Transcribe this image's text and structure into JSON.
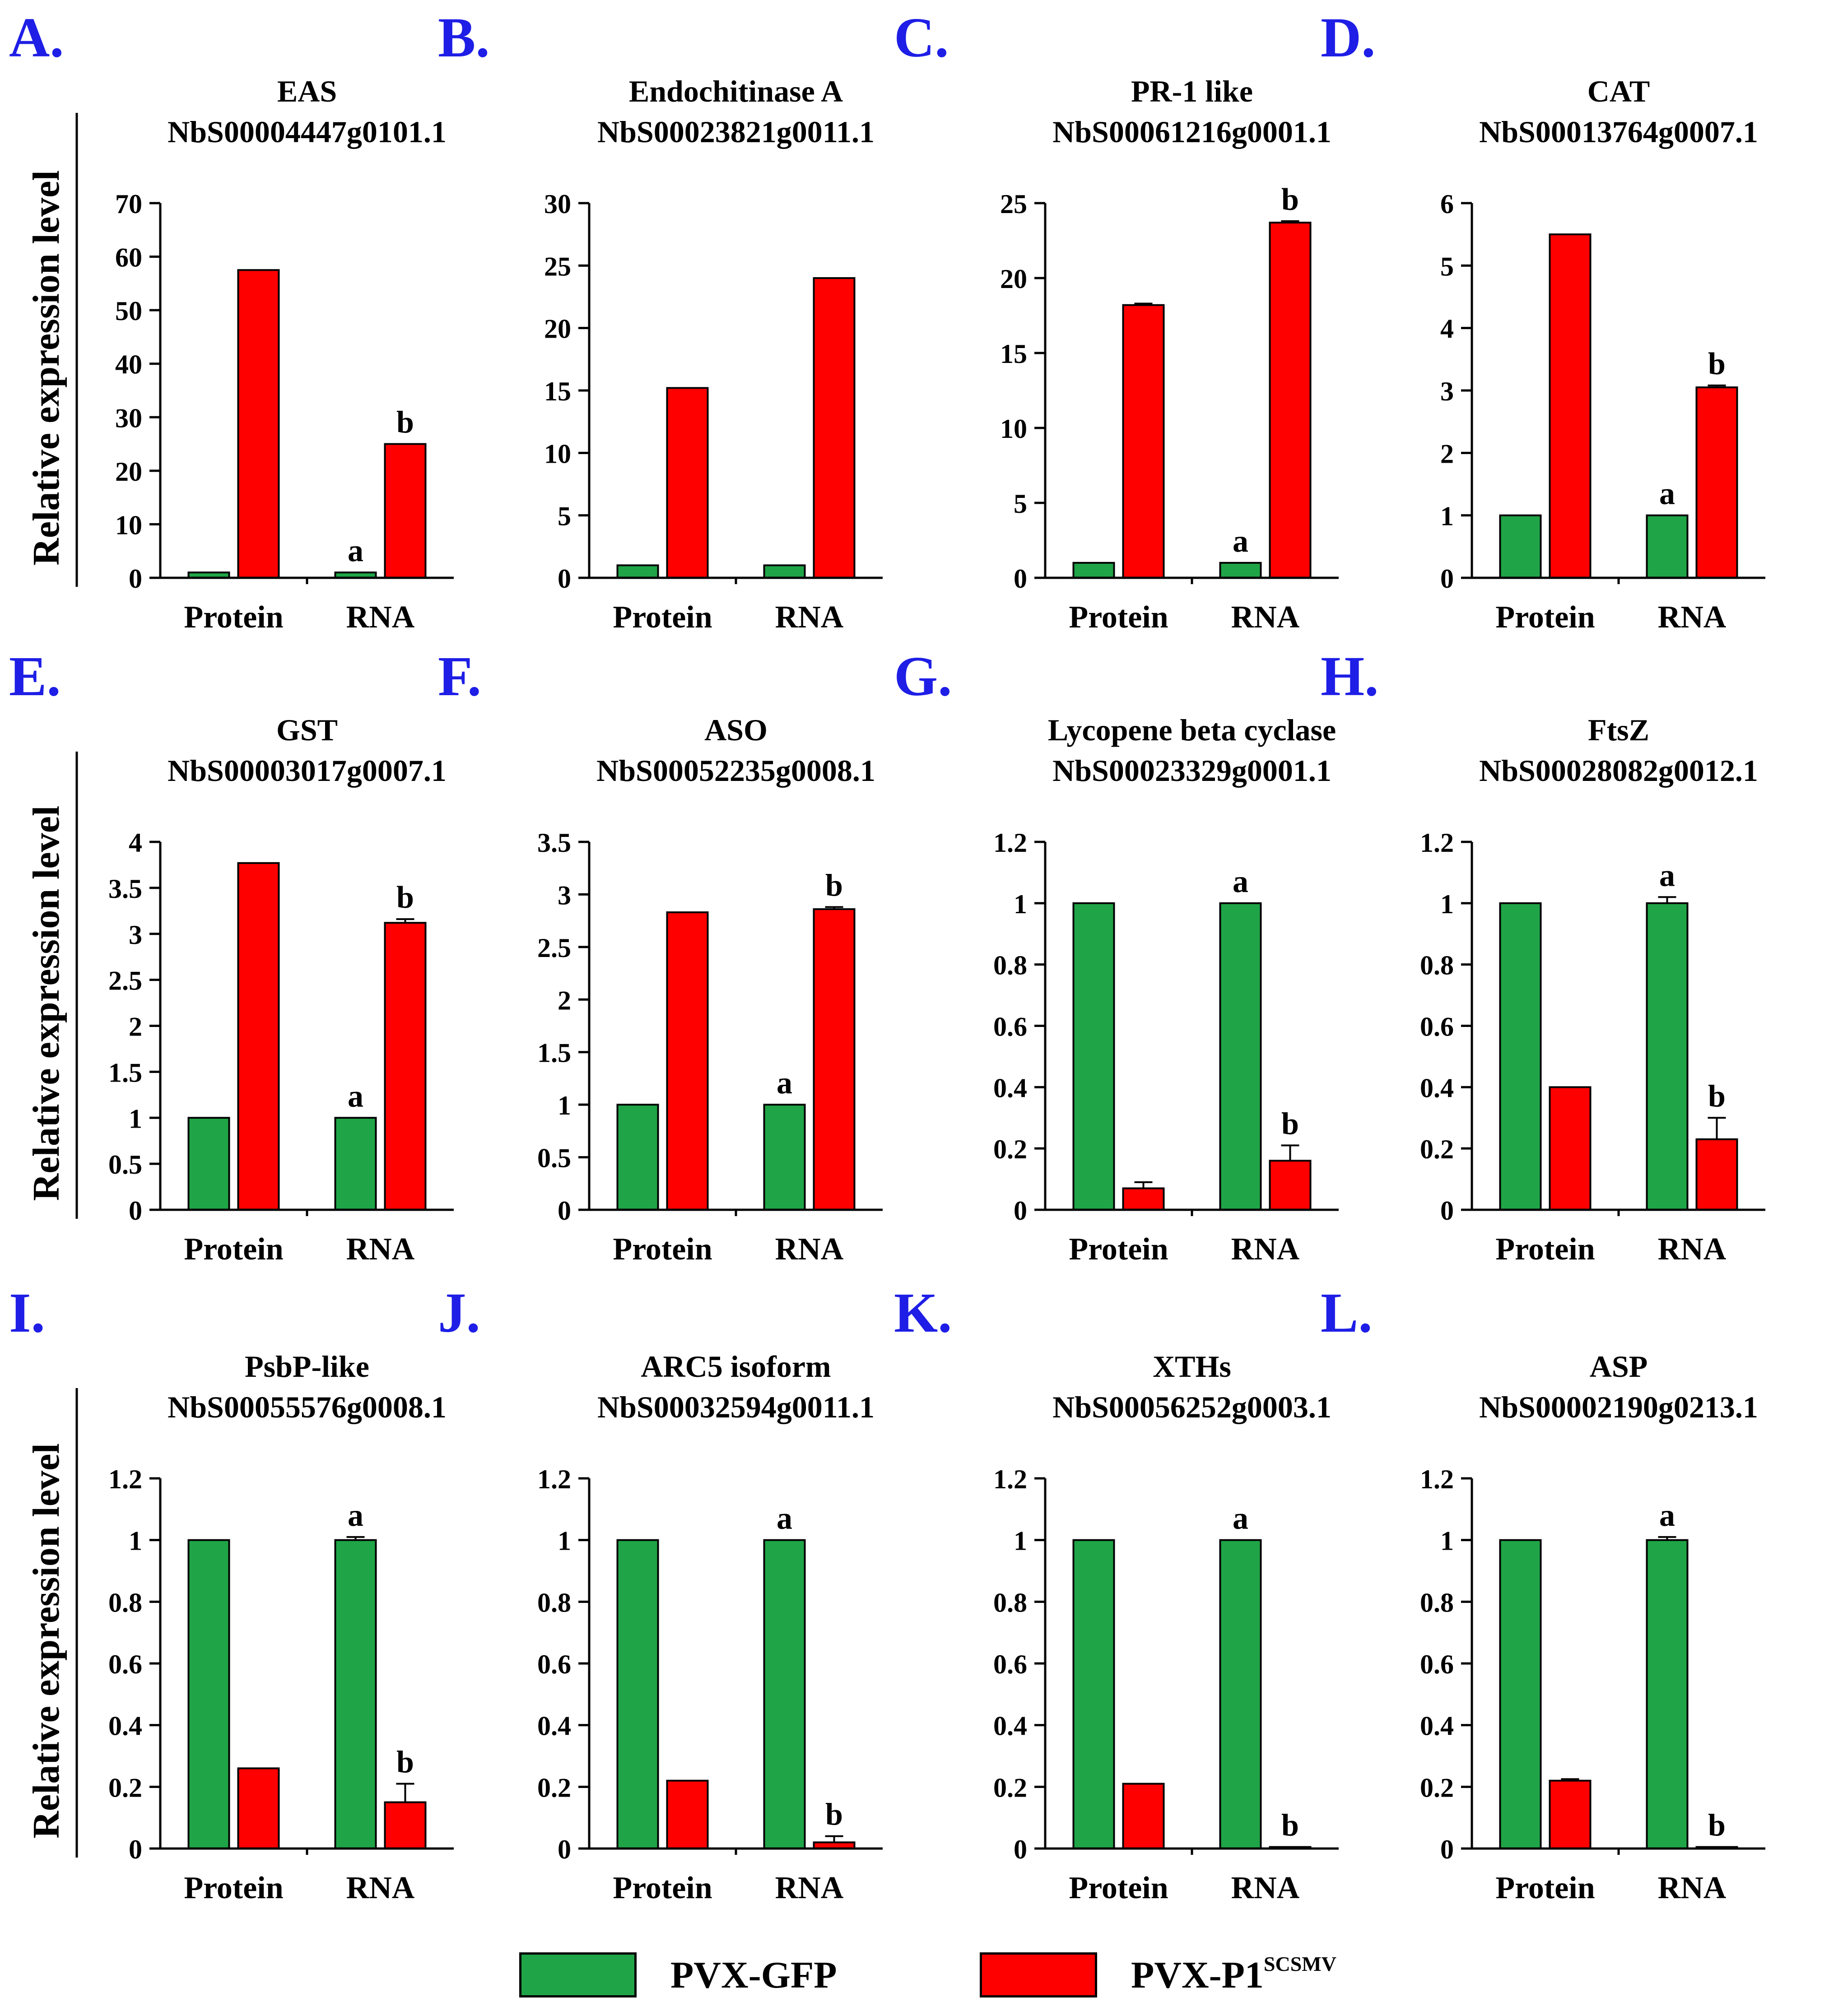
{
  "colors": {
    "green": "#1fa547",
    "red": "#ff0000",
    "panel_letter": "#1e1ee6",
    "text": "#000000"
  },
  "y_axis_label": "Relative expression level",
  "legend": [
    {
      "label": "PVX-GFP",
      "color": "#1fa547"
    },
    {
      "label": "PVX-P1",
      "superscript": "SCSMV",
      "color": "#ff0000"
    }
  ],
  "chart_data": [
    {
      "panel": "A.",
      "type": "bar",
      "title": "EAS",
      "subtitle": "NbS00004447g0101.1",
      "categories": [
        "Protein",
        "RNA"
      ],
      "ylim": [
        0,
        70
      ],
      "yticks": [
        "0",
        "10",
        "20",
        "30",
        "40",
        "50",
        "60",
        "70"
      ],
      "series": [
        {
          "name": "PVX-GFP",
          "values": [
            1,
            1
          ],
          "errors": [
            0,
            0
          ],
          "labels": [
            "",
            "a"
          ]
        },
        {
          "name": "PVX-P1SCSMV",
          "values": [
            57.5,
            25
          ],
          "errors": [
            0,
            0
          ],
          "labels": [
            "",
            "b"
          ]
        }
      ]
    },
    {
      "panel": "B.",
      "type": "bar",
      "title": "Endochitinase A",
      "subtitle": "NbS00023821g0011.1",
      "categories": [
        "Protein",
        "RNA"
      ],
      "ylim": [
        0,
        30
      ],
      "yticks": [
        "0",
        "5",
        "10",
        "15",
        "20",
        "25",
        "30"
      ],
      "series": [
        {
          "name": "PVX-GFP",
          "values": [
            1,
            1
          ],
          "errors": [
            0,
            0
          ],
          "labels": [
            "",
            ""
          ]
        },
        {
          "name": "PVX-P1SCSMV",
          "values": [
            15.2,
            24
          ],
          "errors": [
            0,
            0
          ],
          "labels": [
            "",
            ""
          ]
        }
      ]
    },
    {
      "panel": "C.",
      "type": "bar",
      "title": "PR-1 like",
      "subtitle": "NbS00061216g0001.1",
      "categories": [
        "Protein",
        "RNA"
      ],
      "ylim": [
        0,
        25
      ],
      "yticks": [
        "0",
        "5",
        "10",
        "15",
        "20",
        "25"
      ],
      "series": [
        {
          "name": "PVX-GFP",
          "values": [
            1,
            1
          ],
          "errors": [
            0,
            0
          ],
          "labels": [
            "",
            "a"
          ]
        },
        {
          "name": "PVX-P1SCSMV",
          "values": [
            18.2,
            23.7
          ],
          "errors": [
            0.1,
            0.1
          ],
          "labels": [
            "",
            "b"
          ]
        }
      ]
    },
    {
      "panel": "D.",
      "type": "bar",
      "title": "CAT",
      "subtitle": "NbS00013764g0007.1",
      "categories": [
        "Protein",
        "RNA"
      ],
      "ylim": [
        0,
        6
      ],
      "yticks": [
        "0",
        "1",
        "2",
        "3",
        "4",
        "5",
        "6"
      ],
      "series": [
        {
          "name": "PVX-GFP",
          "values": [
            1,
            1
          ],
          "errors": [
            0,
            0
          ],
          "labels": [
            "",
            "a"
          ]
        },
        {
          "name": "PVX-P1SCSMV",
          "values": [
            5.5,
            3.05
          ],
          "errors": [
            0,
            0.03
          ],
          "labels": [
            "",
            "b"
          ]
        }
      ]
    },
    {
      "panel": "E.",
      "type": "bar",
      "title": "GST",
      "subtitle": "NbS00003017g0007.1",
      "categories": [
        "Protein",
        "RNA"
      ],
      "ylim": [
        0,
        4
      ],
      "yticks": [
        "0",
        "0.5",
        "1",
        "1.5",
        "2",
        "2.5",
        "3",
        "3.5",
        "4"
      ],
      "series": [
        {
          "name": "PVX-GFP",
          "values": [
            1,
            1
          ],
          "errors": [
            0,
            0
          ],
          "labels": [
            "",
            "a"
          ]
        },
        {
          "name": "PVX-P1SCSMV",
          "values": [
            3.77,
            3.12
          ],
          "errors": [
            0,
            0.04
          ],
          "labels": [
            "",
            "b"
          ]
        }
      ]
    },
    {
      "panel": "F.",
      "type": "bar",
      "title": "ASO",
      "subtitle": "NbS00052235g0008.1",
      "categories": [
        "Protein",
        "RNA"
      ],
      "ylim": [
        0,
        3.5
      ],
      "yticks": [
        "0",
        "0.5",
        "1",
        "1.5",
        "2",
        "2.5",
        "3",
        "3.5"
      ],
      "series": [
        {
          "name": "PVX-GFP",
          "values": [
            1,
            1
          ],
          "errors": [
            0,
            0
          ],
          "labels": [
            "",
            "a"
          ]
        },
        {
          "name": "PVX-P1SCSMV",
          "values": [
            2.83,
            2.86
          ],
          "errors": [
            0,
            0.02
          ],
          "labels": [
            "",
            "b"
          ]
        }
      ]
    },
    {
      "panel": "G.",
      "type": "bar",
      "title": "Lycopene beta cyclase",
      "subtitle": "NbS00023329g0001.1",
      "categories": [
        "Protein",
        "RNA"
      ],
      "ylim": [
        0,
        1.2
      ],
      "yticks": [
        "0",
        "0.2",
        "0.4",
        "0.6",
        "0.8",
        "1",
        "1.2"
      ],
      "series": [
        {
          "name": "PVX-GFP",
          "values": [
            1,
            1
          ],
          "errors": [
            0,
            0
          ],
          "labels": [
            "",
            "a"
          ]
        },
        {
          "name": "PVX-P1SCSMV",
          "values": [
            0.07,
            0.16
          ],
          "errors": [
            0.02,
            0.05
          ],
          "labels": [
            "",
            "b"
          ]
        }
      ]
    },
    {
      "panel": "H.",
      "type": "bar",
      "title": "FtsZ",
      "subtitle": "NbS00028082g0012.1",
      "categories": [
        "Protein",
        "RNA"
      ],
      "ylim": [
        0,
        1.2
      ],
      "yticks": [
        "0",
        "0.2",
        "0.4",
        "0.6",
        "0.8",
        "1",
        "1.2"
      ],
      "series": [
        {
          "name": "PVX-GFP",
          "values": [
            1,
            1
          ],
          "errors": [
            0,
            0.02
          ],
          "labels": [
            "",
            "a"
          ]
        },
        {
          "name": "PVX-P1SCSMV",
          "values": [
            0.4,
            0.23
          ],
          "errors": [
            0,
            0.07
          ],
          "labels": [
            "",
            "b"
          ]
        }
      ]
    },
    {
      "panel": "I.",
      "type": "bar",
      "title": "PsbP-like",
      "subtitle": "NbS00055576g0008.1",
      "categories": [
        "Protein",
        "RNA"
      ],
      "ylim": [
        0,
        1.2
      ],
      "yticks": [
        "0",
        "0.2",
        "0.4",
        "0.6",
        "0.8",
        "1",
        "1.2"
      ],
      "series": [
        {
          "name": "PVX-GFP",
          "values": [
            1,
            1
          ],
          "errors": [
            0,
            0.01
          ],
          "labels": [
            "",
            "a"
          ]
        },
        {
          "name": "PVX-P1SCSMV",
          "values": [
            0.26,
            0.15
          ],
          "errors": [
            0,
            0.06
          ],
          "labels": [
            "",
            "b"
          ]
        }
      ]
    },
    {
      "panel": "J.",
      "type": "bar",
      "title": "ARC5 isoform",
      "subtitle": "NbS00032594g0011.1",
      "categories": [
        "Protein",
        "RNA"
      ],
      "ylim": [
        0,
        1.2
      ],
      "yticks": [
        "0",
        "0.2",
        "0.4",
        "0.6",
        "0.8",
        "1",
        "1.2"
      ],
      "series": [
        {
          "name": "PVX-GFP",
          "values": [
            1,
            1
          ],
          "errors": [
            0,
            0
          ],
          "labels": [
            "",
            "a"
          ]
        },
        {
          "name": "PVX-P1SCSMV",
          "values": [
            0.22,
            0.02
          ],
          "errors": [
            0,
            0.02
          ],
          "labels": [
            "",
            "b"
          ]
        }
      ]
    },
    {
      "panel": "K.",
      "type": "bar",
      "title": "XTHs",
      "subtitle": "NbS00056252g0003.1",
      "categories": [
        "Protein",
        "RNA"
      ],
      "ylim": [
        0,
        1.2
      ],
      "yticks": [
        "0",
        "0.2",
        "0.4",
        "0.6",
        "0.8",
        "1",
        "1.2"
      ],
      "series": [
        {
          "name": "PVX-GFP",
          "values": [
            1,
            1
          ],
          "errors": [
            0,
            0
          ],
          "labels": [
            "",
            "a"
          ]
        },
        {
          "name": "PVX-P1SCSMV",
          "values": [
            0.21,
            0.005
          ],
          "errors": [
            0,
            0
          ],
          "labels": [
            "",
            "b"
          ]
        }
      ]
    },
    {
      "panel": "L.",
      "type": "bar",
      "title": "ASP",
      "subtitle": "NbS00002190g0213.1",
      "categories": [
        "Protein",
        "RNA"
      ],
      "ylim": [
        0,
        1.2
      ],
      "yticks": [
        "0",
        "0.2",
        "0.4",
        "0.6",
        "0.8",
        "1",
        "1.2"
      ],
      "series": [
        {
          "name": "PVX-GFP",
          "values": [
            1,
            1
          ],
          "errors": [
            0,
            0.01
          ],
          "labels": [
            "",
            "a"
          ]
        },
        {
          "name": "PVX-P1SCSMV",
          "values": [
            0.22,
            0.005
          ],
          "errors": [
            0.005,
            0
          ],
          "labels": [
            "",
            "b"
          ]
        }
      ]
    }
  ]
}
